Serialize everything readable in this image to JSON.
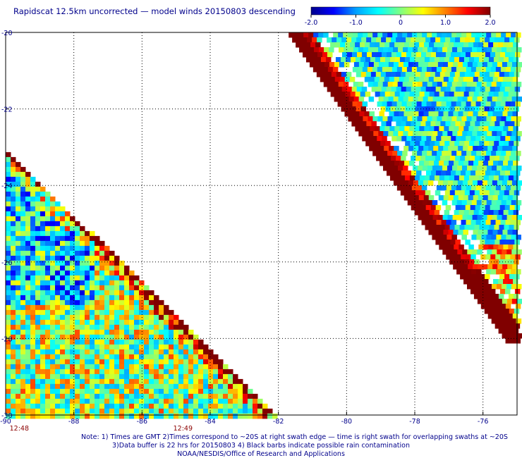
{
  "chart_data": {
    "type": "heatmap",
    "title": "Rapidscat 12.5km uncorrected — model winds 20150803 descending",
    "xlabel": "",
    "ylabel": "",
    "xlim": [
      -90,
      -75
    ],
    "ylim": [
      -30,
      -20
    ],
    "x_ticks": [
      "-90",
      "-88",
      "-86",
      "-84",
      "-82",
      "-80",
      "-78",
      "-76"
    ],
    "y_ticks": [
      "-20",
      "-22",
      "-24",
      "-26",
      "-28",
      "-30"
    ],
    "x_tick_values": [
      -90,
      -88,
      -86,
      -84,
      -82,
      -80,
      -78,
      -76
    ],
    "y_tick_values": [
      -20,
      -22,
      -24,
      -26,
      -28,
      -30
    ],
    "grid": true,
    "colorbar": {
      "range": [
        -2.0,
        2.0
      ],
      "tick_labels": [
        "-2.0",
        "-1.0",
        "0",
        "1.0",
        "2.0"
      ],
      "tick_values": [
        -2.0,
        -1.0,
        0,
        1.0,
        2.0
      ],
      "colors": [
        "#00008b",
        "#0000ff",
        "#00a0ff",
        "#00ffff",
        "#80ff80",
        "#ffff00",
        "#ff8000",
        "#ff0000",
        "#800000"
      ]
    },
    "time_labels": [
      {
        "text": "12:48",
        "x": -89.6
      },
      {
        "text": "12:49",
        "x": -84.8
      }
    ],
    "swaths": [
      {
        "name": "west",
        "edge": "lower-left triangle",
        "lon_range": [
          -90,
          -82
        ],
        "lat_range": [
          -30,
          -23
        ]
      },
      {
        "name": "east",
        "edge": "upper-right band",
        "lon_range": [
          -81.7,
          -75
        ],
        "lat_range": [
          -28,
          -20
        ]
      }
    ]
  },
  "notes": {
    "line1": "Note: 1) Times are GMT 2)Times correspond to ~20S at right swath edge — time is right swath for overlapping swaths at ~20S",
    "line2": "3)Data buffer is 22 hrs for 20150803 4) Black barbs indicate possible rain contamination",
    "line3": "NOAA/NESDIS/Office of Research and Applications"
  }
}
